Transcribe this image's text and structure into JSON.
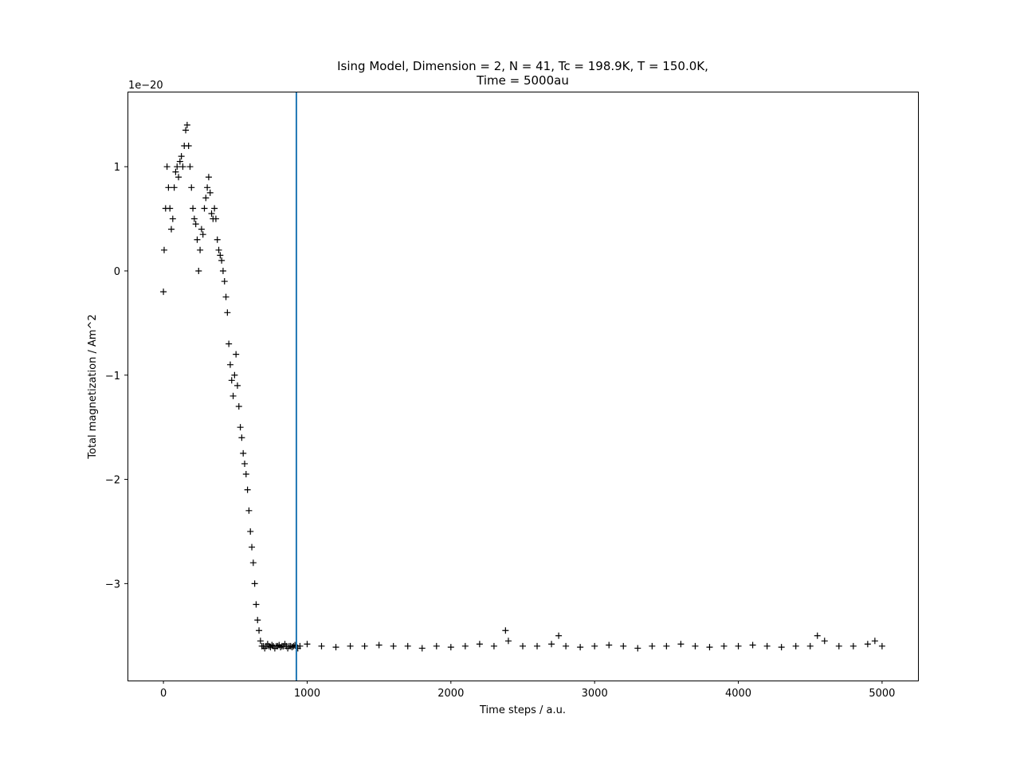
{
  "chart_data": {
    "type": "scatter",
    "title_lines": [
      "Ising Model, Dimension = 2, N = 41, Tc = 198.9K, T = 150.0K,",
      "Time = 5000au"
    ],
    "xlabel": "Time steps / a.u.",
    "ylabel": "Total magnetization / Am^2",
    "y_offset_label": "1e−20",
    "xlim": [
      -250,
      5250
    ],
    "ylim": [
      -3.93,
      1.72
    ],
    "x_ticks": [
      0,
      1000,
      2000,
      3000,
      4000,
      5000
    ],
    "x_tick_labels": [
      "0",
      "1000",
      "2000",
      "3000",
      "4000",
      "5000"
    ],
    "y_ticks": [
      -3,
      -2,
      -1,
      0,
      1
    ],
    "y_tick_labels": [
      "−3",
      "−2",
      "−1",
      "0",
      "1"
    ],
    "marker": "+",
    "marker_color": "#000000",
    "vline": {
      "x": 925,
      "color": "#1f77b4"
    },
    "grid": false,
    "series": [
      {
        "marker": "+",
        "x": [
          0,
          5,
          15,
          25,
          35,
          45,
          55,
          65,
          75,
          85,
          95,
          105,
          115,
          125,
          135,
          145,
          155,
          165,
          175,
          185,
          195,
          205,
          215,
          225,
          235,
          245,
          255,
          265,
          275,
          285,
          295,
          305,
          315,
          325,
          335,
          345,
          355,
          365,
          375,
          385,
          395,
          405,
          415,
          425,
          435,
          445,
          455,
          465,
          475,
          485,
          495,
          505,
          515,
          525,
          535,
          545,
          555,
          565,
          575,
          585,
          595,
          605,
          615,
          625,
          635,
          645,
          655,
          665,
          675,
          685,
          695,
          705,
          715,
          725,
          735,
          745,
          755,
          765,
          775,
          785,
          795,
          805,
          815,
          825,
          835,
          845,
          855,
          865,
          875,
          885,
          895,
          905,
          915,
          925,
          935,
          950,
          1000,
          1100,
          1200,
          1300,
          1400,
          1500,
          1600,
          1700,
          1800,
          1900,
          2000,
          2100,
          2200,
          2300,
          2380,
          2400,
          2500,
          2600,
          2700,
          2750,
          2800,
          2900,
          3000,
          3100,
          3200,
          3300,
          3400,
          3500,
          3600,
          3700,
          3800,
          3900,
          4000,
          4100,
          4200,
          4300,
          4400,
          4500,
          4550,
          4600,
          4700,
          4800,
          4900,
          4950,
          5000
        ],
        "y": [
          -0.2,
          0.2,
          0.6,
          1.0,
          0.8,
          0.6,
          0.4,
          0.5,
          0.8,
          0.95,
          1.0,
          0.9,
          1.05,
          1.1,
          1.0,
          1.2,
          1.35,
          1.4,
          1.2,
          1.0,
          0.8,
          0.6,
          0.5,
          0.45,
          0.3,
          0.0,
          0.2,
          0.4,
          0.35,
          0.6,
          0.7,
          0.8,
          0.9,
          0.75,
          0.55,
          0.5,
          0.6,
          0.5,
          0.3,
          0.2,
          0.15,
          0.1,
          0.0,
          -0.1,
          -0.25,
          -0.4,
          -0.7,
          -0.9,
          -1.05,
          -1.2,
          -1.0,
          -0.8,
          -1.1,
          -1.3,
          -1.5,
          -1.6,
          -1.75,
          -1.85,
          -1.95,
          -2.1,
          -2.3,
          -2.5,
          -2.65,
          -2.8,
          -3.0,
          -3.2,
          -3.35,
          -3.45,
          -3.55,
          -3.6,
          -3.6,
          -3.62,
          -3.6,
          -3.58,
          -3.6,
          -3.61,
          -3.59,
          -3.6,
          -3.62,
          -3.6,
          -3.6,
          -3.59,
          -3.61,
          -3.6,
          -3.6,
          -3.58,
          -3.6,
          -3.62,
          -3.6,
          -3.6,
          -3.61,
          -3.6,
          -3.59,
          -3.6,
          -3.62,
          -3.6,
          -3.58,
          -3.6,
          -3.61,
          -3.6,
          -3.6,
          -3.59,
          -3.6,
          -3.6,
          -3.62,
          -3.6,
          -3.61,
          -3.6,
          -3.58,
          -3.6,
          -3.45,
          -3.55,
          -3.6,
          -3.6,
          -3.58,
          -3.5,
          -3.6,
          -3.61,
          -3.6,
          -3.59,
          -3.6,
          -3.62,
          -3.6,
          -3.6,
          -3.58,
          -3.6,
          -3.61,
          -3.6,
          -3.6,
          -3.59,
          -3.6,
          -3.61,
          -3.6,
          -3.6,
          -3.5,
          -3.55,
          -3.6,
          -3.6,
          -3.58,
          -3.55,
          -3.6
        ]
      }
    ]
  }
}
